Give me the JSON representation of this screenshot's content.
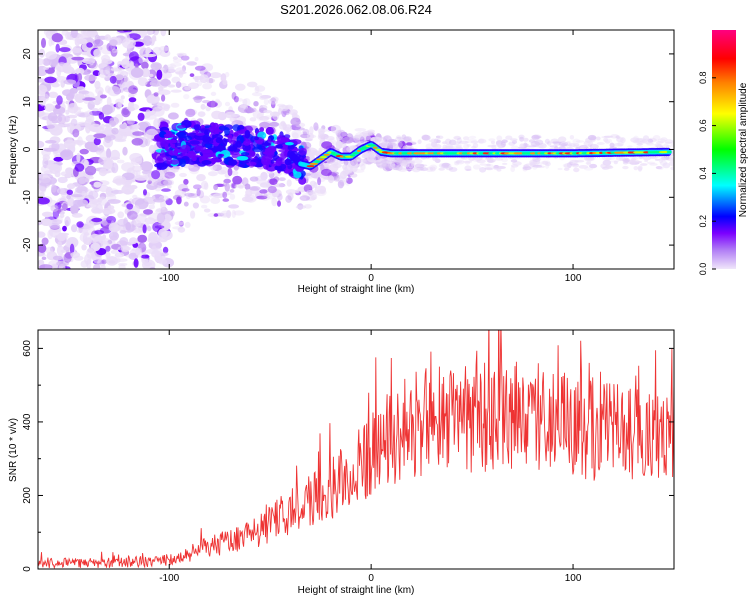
{
  "title": "S201.2026.062.08.06.R24",
  "colors": {
    "snr_line": "#ee3333",
    "axis": "#000000",
    "background": "#ffffff"
  },
  "chart_data": [
    {
      "type": "heatmap",
      "name": "spectrogram",
      "xlabel": "Height of straight line (km)",
      "ylabel": "Frequency (Hz)",
      "xlim": [
        -165,
        150
      ],
      "ylim": [
        -25,
        25
      ],
      "xticks": [
        -100,
        0,
        100
      ],
      "xtick_labels": [
        "-100",
        "0",
        "100"
      ],
      "yticks": [
        -20,
        -10,
        0,
        10,
        20
      ],
      "ytick_labels": [
        "-20",
        "-10",
        "0",
        "10",
        "20"
      ],
      "colorbar": {
        "label": "Normalized spectral amplitude",
        "range": [
          0,
          1
        ],
        "ticks": [
          0,
          0.2,
          0.4,
          0.6,
          0.8
        ],
        "tick_labels": [
          "0.0",
          "0.2",
          "0.4",
          "0.6",
          "0.8"
        ],
        "colormap": [
          "#f0e6fa",
          "#7b00ff",
          "#0000ff",
          "#00ffff",
          "#00ff00",
          "#ffff00",
          "#ff8000",
          "#ff0000",
          "#ff0080"
        ]
      },
      "signal_track": {
        "description_points_km": [
          -105,
          -90,
          -75,
          -60,
          -50,
          -40,
          -35,
          -30,
          -25,
          -20,
          -15,
          -10,
          -5,
          0,
          5,
          10,
          50,
          100,
          150
        ],
        "frequency_hz": [
          0,
          1.5,
          1,
          0.5,
          0,
          -1,
          -3,
          -3.5,
          -2,
          -0.5,
          -1.5,
          -1.5,
          0,
          1,
          -0.5,
          -0.8,
          -0.8,
          -0.8,
          -0.5
        ]
      }
    },
    {
      "type": "line",
      "name": "snr",
      "xlabel": "Height of straight line (km)",
      "ylabel": "SNR (10 * v/v)",
      "xlim": [
        -165,
        150
      ],
      "ylim": [
        0,
        650
      ],
      "xticks": [
        -100,
        0,
        100
      ],
      "xtick_labels": [
        "-100",
        "0",
        "100"
      ],
      "yticks": [
        0,
        200,
        400,
        600
      ],
      "ytick_labels": [
        "0",
        "200",
        "400",
        "600"
      ],
      "trend": {
        "x": [
          -165,
          -120,
          -100,
          -80,
          -60,
          -45,
          -30,
          -10,
          0,
          10,
          25,
          50,
          75,
          100,
          125,
          140,
          150
        ],
        "y": [
          15,
          18,
          25,
          60,
          90,
          140,
          190,
          250,
          320,
          360,
          400,
          410,
          420,
          390,
          370,
          360,
          350
        ]
      }
    }
  ]
}
